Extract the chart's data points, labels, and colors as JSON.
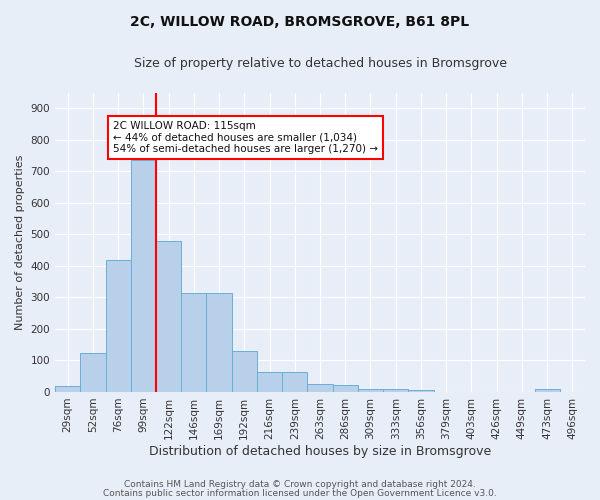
{
  "title": "2C, WILLOW ROAD, BROMSGROVE, B61 8PL",
  "subtitle": "Size of property relative to detached houses in Bromsgrove",
  "xlabel": "Distribution of detached houses by size in Bromsgrove",
  "ylabel": "Number of detached properties",
  "categories": [
    "29sqm",
    "52sqm",
    "76sqm",
    "99sqm",
    "122sqm",
    "146sqm",
    "169sqm",
    "192sqm",
    "216sqm",
    "239sqm",
    "263sqm",
    "286sqm",
    "309sqm",
    "333sqm",
    "356sqm",
    "379sqm",
    "403sqm",
    "426sqm",
    "449sqm",
    "473sqm",
    "496sqm"
  ],
  "values": [
    20,
    125,
    420,
    735,
    480,
    315,
    315,
    130,
    63,
    63,
    25,
    22,
    10,
    10,
    7,
    0,
    0,
    0,
    0,
    10,
    0
  ],
  "bar_color": "#b8d0ea",
  "bar_edge_color": "#6aaed6",
  "vline_color": "red",
  "annotation_text": "2C WILLOW ROAD: 115sqm\n← 44% of detached houses are smaller (1,034)\n54% of semi-detached houses are larger (1,270) →",
  "annotation_box_color": "white",
  "annotation_box_edge": "red",
  "background_color": "#e8eef8",
  "plot_bg_color": "#e8eef8",
  "footer_line1": "Contains HM Land Registry data © Crown copyright and database right 2024.",
  "footer_line2": "Contains public sector information licensed under the Open Government Licence v3.0.",
  "ylim": [
    0,
    950
  ],
  "title_fontsize": 10,
  "subtitle_fontsize": 9,
  "xlabel_fontsize": 9,
  "ylabel_fontsize": 8,
  "tick_fontsize": 7.5,
  "footer_fontsize": 6.5
}
